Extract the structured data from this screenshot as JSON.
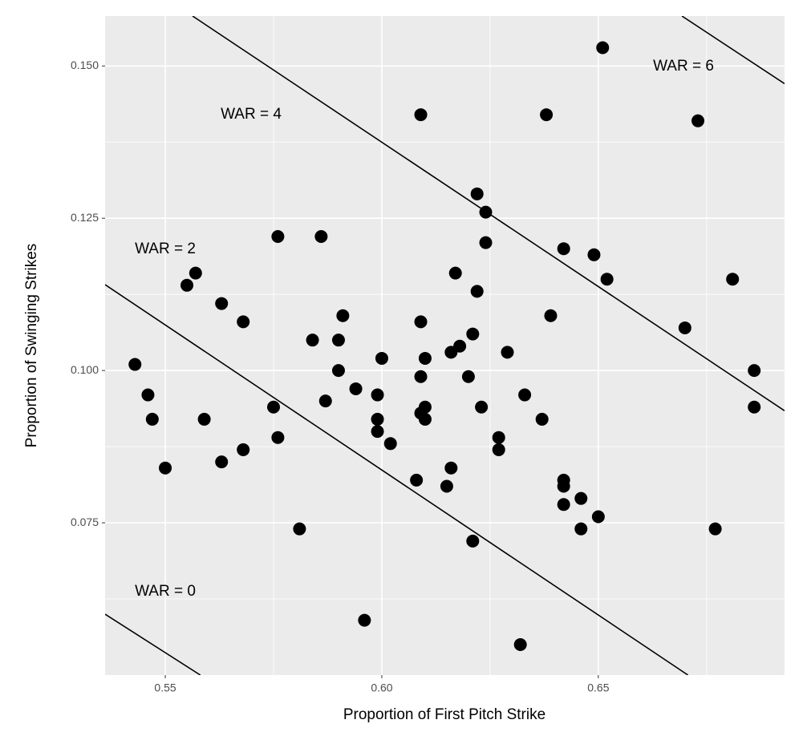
{
  "chart_data": {
    "type": "scatter",
    "x_label": "Proportion of First Pitch Strike",
    "y_label": "Proportion of Swinging Strikes",
    "color": "#000000",
    "x": [
      0.651,
      0.609,
      0.638,
      0.673,
      0.622,
      0.624,
      0.576,
      0.586,
      0.624,
      0.642,
      0.649,
      0.557,
      0.617,
      0.555,
      0.652,
      0.681,
      0.622,
      0.563,
      0.568,
      0.609,
      0.67,
      0.591,
      0.639,
      0.621,
      0.584,
      0.59,
      0.618,
      0.616,
      0.629,
      0.61,
      0.6,
      0.543,
      0.59,
      0.686,
      0.609,
      0.62,
      0.594,
      0.546,
      0.599,
      0.633,
      0.587,
      0.575,
      0.61,
      0.623,
      0.686,
      0.609,
      0.547,
      0.559,
      0.599,
      0.61,
      0.637,
      0.599,
      0.576,
      0.627,
      0.602,
      0.568,
      0.627,
      0.563,
      0.55,
      0.616,
      0.608,
      0.642,
      0.642,
      0.615,
      0.646,
      0.642,
      0.65,
      0.581,
      0.646,
      0.677,
      0.621,
      0.596,
      0.632
    ],
    "y": [
      0.153,
      0.142,
      0.142,
      0.141,
      0.129,
      0.126,
      0.122,
      0.122,
      0.121,
      0.12,
      0.119,
      0.116,
      0.116,
      0.114,
      0.115,
      0.115,
      0.113,
      0.111,
      0.108,
      0.108,
      0.107,
      0.109,
      0.109,
      0.106,
      0.105,
      0.105,
      0.104,
      0.103,
      0.103,
      0.102,
      0.102,
      0.101,
      0.1,
      0.1,
      0.099,
      0.099,
      0.097,
      0.096,
      0.096,
      0.096,
      0.095,
      0.094,
      0.094,
      0.094,
      0.094,
      0.093,
      0.092,
      0.092,
      0.092,
      0.092,
      0.092,
      0.09,
      0.089,
      0.089,
      0.088,
      0.087,
      0.087,
      0.085,
      0.084,
      0.084,
      0.082,
      0.082,
      0.081,
      0.081,
      0.079,
      0.078,
      0.076,
      0.074,
      0.074,
      0.074,
      0.072,
      0.059,
      0.055
    ],
    "lines": [
      {
        "label": "WAR = 0",
        "x": [
          0.5361,
          0.5581
        ],
        "y": [
          0.06,
          0.05
        ]
      },
      {
        "label": "WAR = 2",
        "x": [
          0.5361,
          0.6707
        ],
        "y": [
          0.1141,
          0.05
        ]
      },
      {
        "label": "WAR = 4",
        "x": [
          0.5563,
          0.693
        ],
        "y": [
          0.1582,
          0.0934
        ]
      },
      {
        "label": "WAR = 6",
        "x": [
          0.6693,
          0.693
        ],
        "y": [
          0.1582,
          0.1471
        ]
      }
    ],
    "xlim": [
      0.5361,
      0.693
    ],
    "ylim": [
      0.05,
      0.1582
    ],
    "xticks": [
      {
        "value": 0.55,
        "label": "0.55"
      },
      {
        "value": 0.6,
        "label": "0.60"
      },
      {
        "value": 0.65,
        "label": "0.65"
      }
    ],
    "yticks": [
      0.075,
      {
        "value": 0.1,
        "label": "0.100"
      },
      0.125,
      {
        "value": 0.15,
        "label": "0.150"
      }
    ],
    "minor_xticks": [
      0.575,
      0.625,
      0.675
    ],
    "minor_yticks": [
      0.0625,
      0.0875,
      0.1125,
      0.1375
    ],
    "grid": true
  }
}
